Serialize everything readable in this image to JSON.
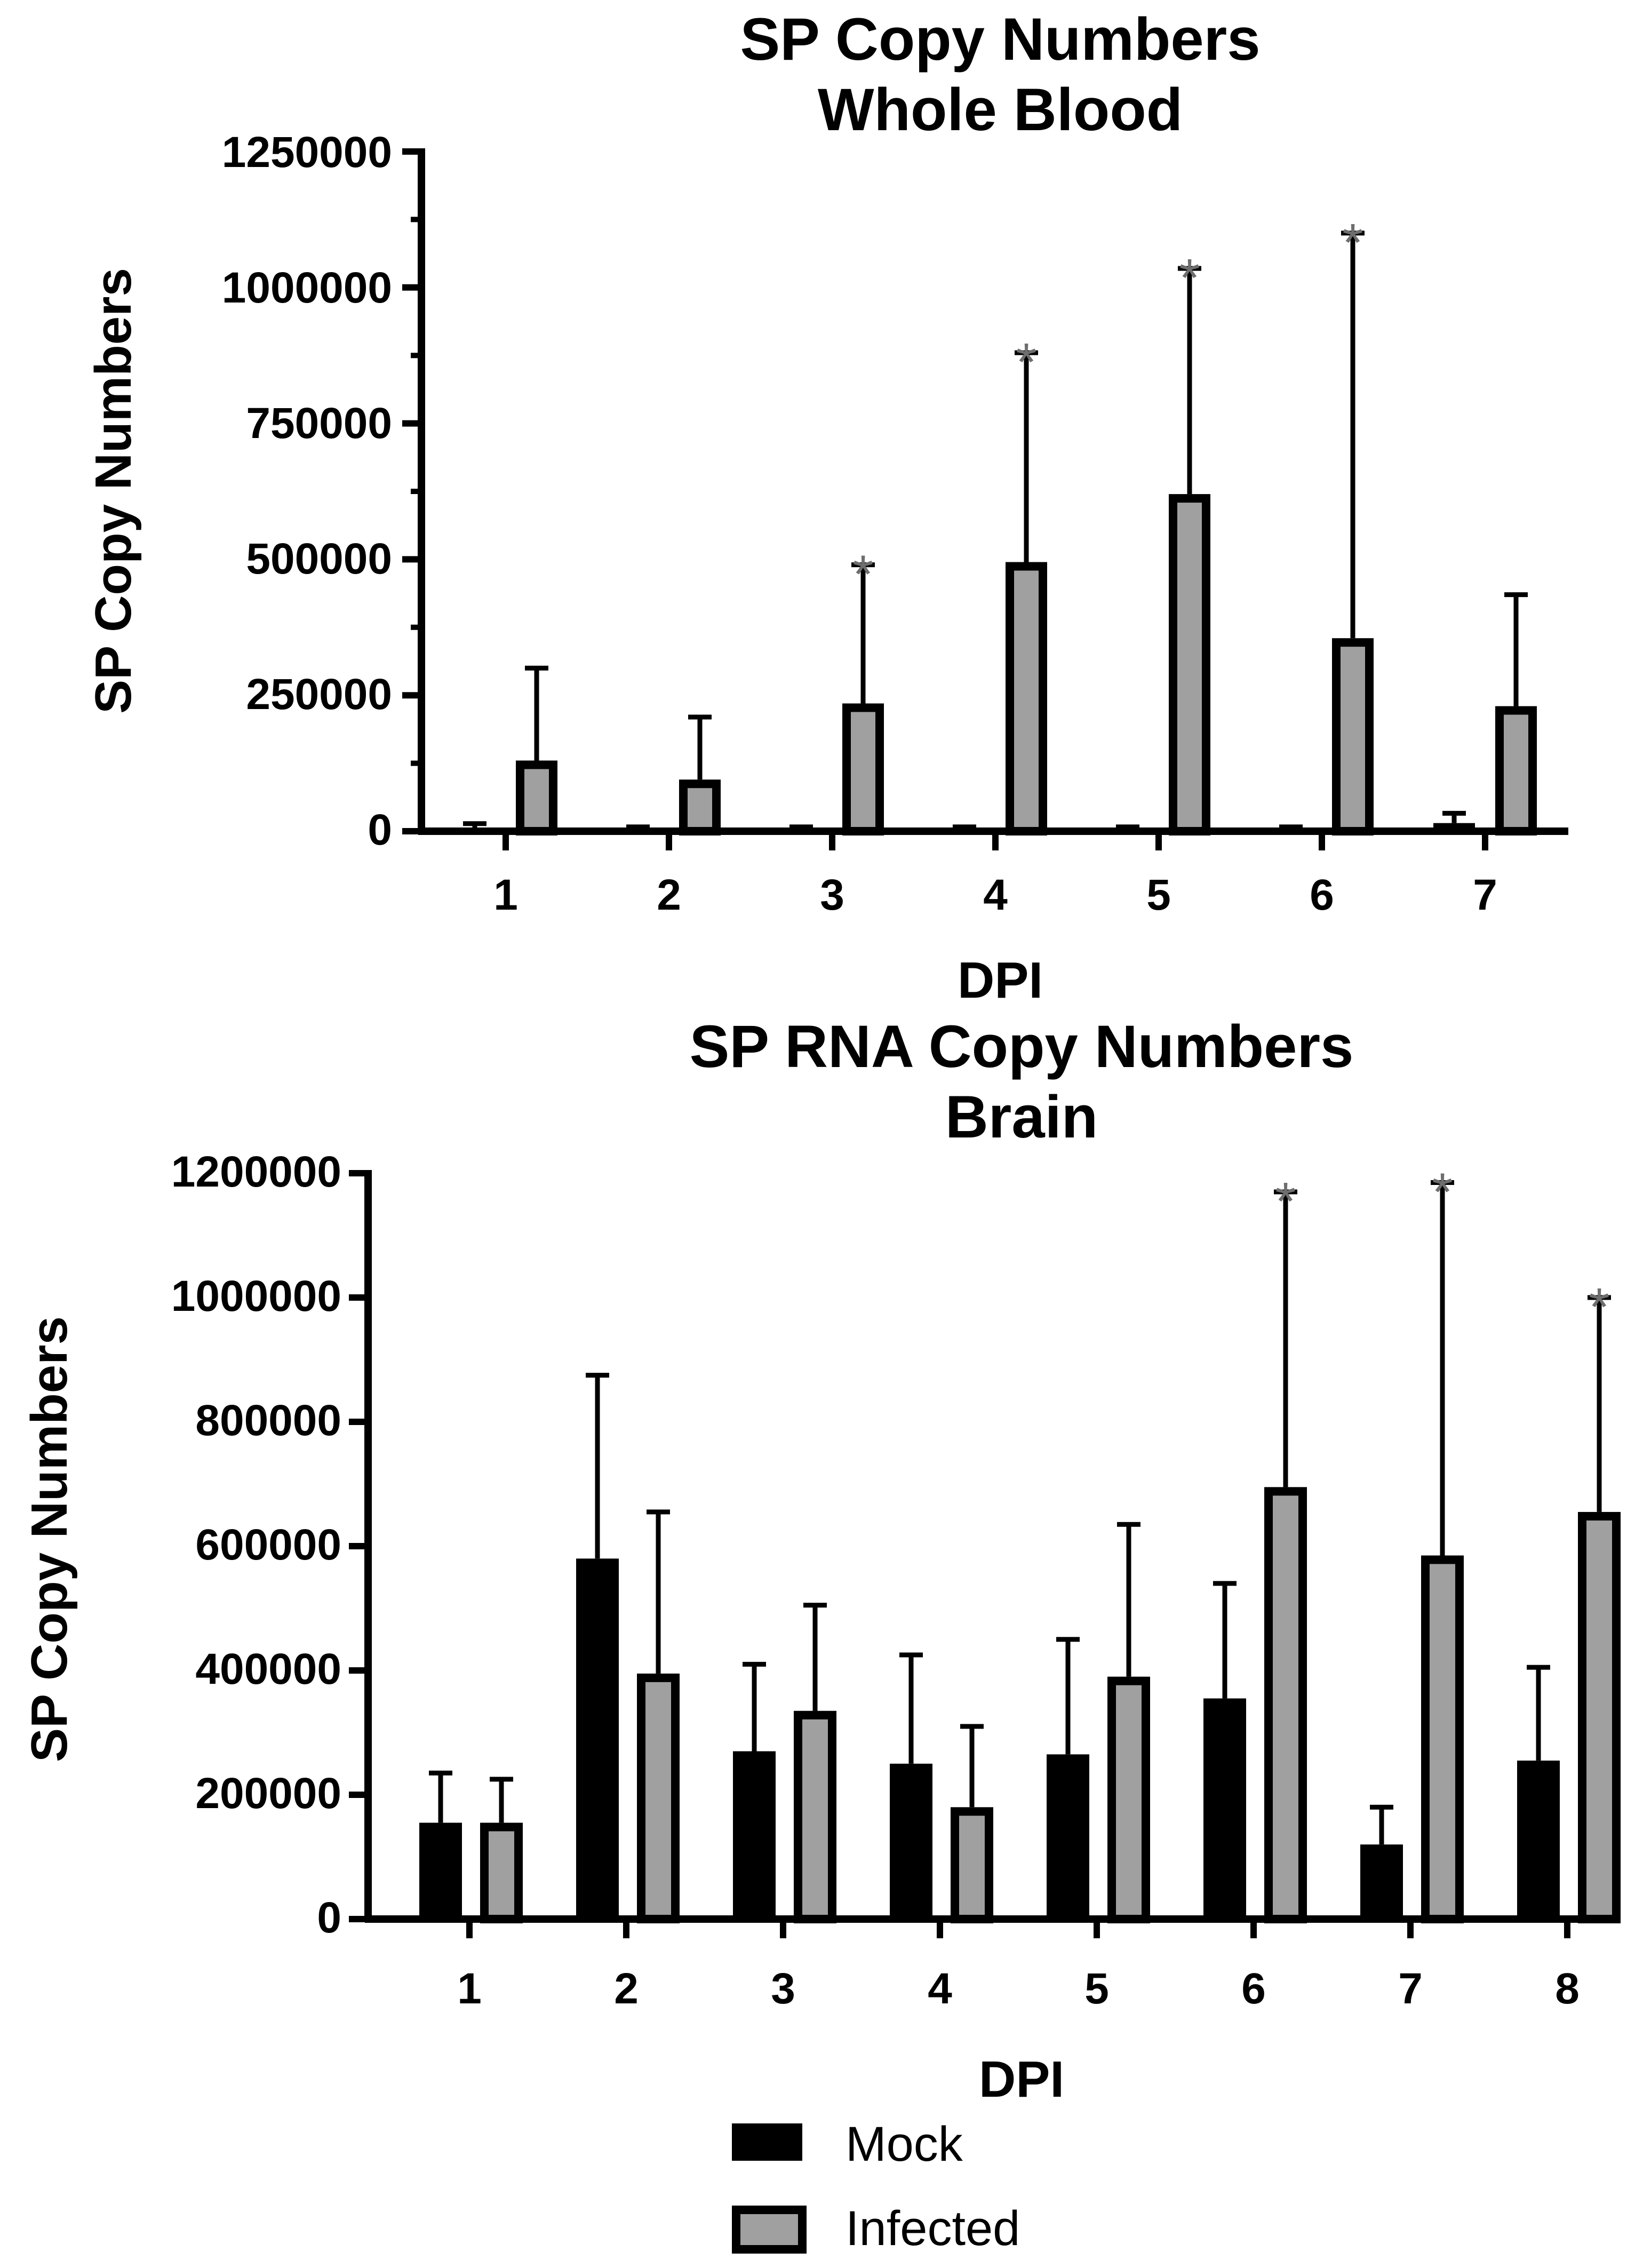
{
  "chart_data": [
    {
      "type": "bar",
      "title": "SP Copy Numbers",
      "subtitle": "Whole Blood",
      "xlabel": "DPI",
      "ylabel": "SP Copy Numbers",
      "ylim": [
        0,
        1250000
      ],
      "yticks": [
        "0",
        "250000",
        "500000",
        "750000",
        "1000000",
        "1250000"
      ],
      "categories": [
        "1",
        "2",
        "3",
        "4",
        "5",
        "6",
        "7"
      ],
      "series": [
        {
          "name": "Mock",
          "values": [
            4000,
            3000,
            3000,
            3000,
            3000,
            3000,
            15000
          ],
          "errors": [
            10000,
            5000,
            5000,
            5000,
            5000,
            5000,
            18000
          ]
        },
        {
          "name": "Infected",
          "values": [
            130000,
            95000,
            235000,
            495000,
            620000,
            355000,
            230000
          ],
          "errors": [
            170000,
            115000,
            255000,
            385000,
            415000,
            745000,
            205000
          ]
        }
      ],
      "significance": [
        "",
        "",
        "*",
        "*",
        "*",
        "*",
        ""
      ]
    },
    {
      "type": "bar",
      "title": "SP RNA Copy Numbers",
      "subtitle": "Brain",
      "xlabel": "DPI",
      "ylabel": "SP Copy Numbers",
      "ylim": [
        0,
        1200000
      ],
      "yticks": [
        "0",
        "200000",
        "400000",
        "600000",
        "800000",
        "1000000",
        "1200000"
      ],
      "categories": [
        "1",
        "2",
        "3",
        "4",
        "5",
        "6",
        "7",
        "8"
      ],
      "series": [
        {
          "name": "Mock",
          "values": [
            155000,
            580000,
            270000,
            250000,
            265000,
            355000,
            120000,
            255000
          ],
          "errors": [
            80000,
            295000,
            140000,
            175000,
            185000,
            185000,
            60000,
            150000
          ]
        },
        {
          "name": "Infected",
          "values": [
            155000,
            395000,
            335000,
            180000,
            390000,
            695000,
            585000,
            655000
          ],
          "errors": [
            70000,
            260000,
            170000,
            130000,
            245000,
            475000,
            600000,
            345000
          ]
        }
      ],
      "significance": [
        "",
        "",
        "",
        "",
        "",
        "*",
        "*",
        "*"
      ]
    }
  ],
  "legend": {
    "items": [
      {
        "label": "Mock",
        "color": "#000000"
      },
      {
        "label": "Infected",
        "color": "#a0a0a0"
      }
    ]
  },
  "colors": {
    "mock": "#000000",
    "infected": "#a0a0a0",
    "outline": "#000000",
    "star": "#6e6e6e"
  }
}
